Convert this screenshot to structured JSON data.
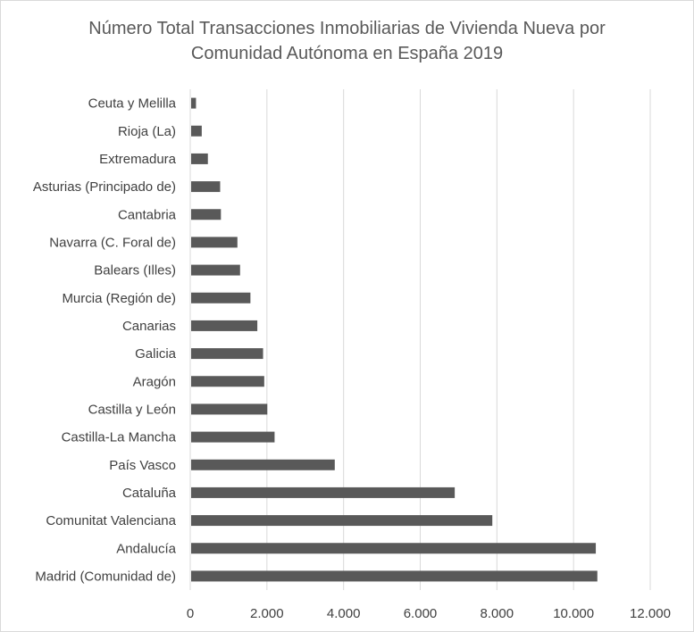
{
  "chart_data": {
    "type": "bar",
    "orientation": "horizontal",
    "title_line1": "Número Total Transacciones Inmobiliarias de Vivienda Nueva por",
    "title_line2": "Comunidad Autónoma en España 2019",
    "categories": [
      "Ceuta y Melilla",
      "Rioja (La)",
      "Extremadura",
      "Asturias (Principado de)",
      "Cantabria",
      "Navarra (C. Foral de)",
      "Balears (Illes)",
      "Murcia (Región de)",
      "Canarias",
      "Galicia",
      "Aragón",
      "Castilla y León",
      "Castilla-La Mancha",
      "País Vasco",
      "Cataluña",
      "Comunitat Valenciana",
      "Andalucía",
      "Madrid (Comunidad de)"
    ],
    "values": [
      150,
      300,
      460,
      780,
      800,
      1230,
      1300,
      1570,
      1750,
      1900,
      1930,
      2010,
      2200,
      3770,
      6900,
      7880,
      10580,
      10620
    ],
    "xlim": [
      0,
      12000
    ],
    "ticks": [
      0,
      2000,
      4000,
      6000,
      8000,
      10000,
      12000
    ],
    "tick_labels": [
      "0",
      "2.000",
      "4.000",
      "6.000",
      "8.000",
      "10.000",
      "12.000"
    ],
    "grid": true,
    "bar_color": "#595959",
    "grid_color": "#d9d9d9"
  }
}
